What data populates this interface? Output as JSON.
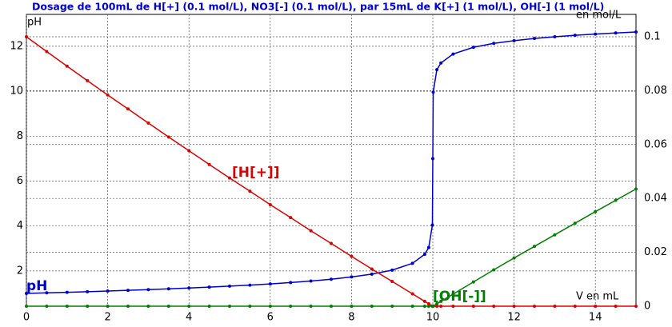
{
  "chart_data": {
    "type": "line",
    "title": "Dosage de 100mL de H[+] (0.1 mol/L), NO3[-] (0.1 mol/L),  par 15mL  de K[+] (1 mol/L), OH[-] (1 mol/L)",
    "y_label": "pH",
    "y2_label": "en mol/L",
    "x_label": "V en mL",
    "x": [
      0,
      0.5,
      1,
      1.5,
      2,
      2.5,
      3,
      3.5,
      4,
      4.5,
      5,
      5.5,
      6,
      6.5,
      7,
      7.5,
      8,
      8.5,
      9,
      9.5,
      9.8,
      9.9,
      9.99,
      10,
      10.01,
      10.1,
      10.2,
      10.5,
      11,
      11.5,
      12,
      12.5,
      13,
      13.5,
      14,
      14.5,
      15
    ],
    "series": [
      {
        "name": "pH",
        "color": "#0000cc",
        "axis": "y",
        "values": [
          1,
          1.024,
          1.05,
          1.077,
          1.106,
          1.136,
          1.168,
          1.202,
          1.239,
          1.279,
          1.322,
          1.37,
          1.423,
          1.483,
          1.552,
          1.633,
          1.732,
          1.859,
          2.037,
          2.34,
          2.74,
          3.041,
          4.041,
          7,
          9.959,
          10.958,
          11.259,
          11.656,
          11.955,
          12.129,
          12.252,
          12.347,
          12.424,
          12.489,
          12.545,
          12.594,
          12.638
        ]
      },
      {
        "name": "[H[+]]",
        "color": "#dd0000",
        "axis": "y2",
        "values": [
          0.1,
          0.0945,
          0.0891,
          0.0837,
          0.0784,
          0.0732,
          0.068,
          0.0628,
          0.0577,
          0.0526,
          0.0476,
          0.0427,
          0.0377,
          0.0329,
          0.028,
          0.0233,
          0.0185,
          0.0138,
          0.0092,
          0.0046,
          0.0018,
          0.0009,
          0.0001,
          0,
          0,
          0,
          0,
          0,
          0,
          0,
          0,
          0,
          0,
          0,
          0,
          0,
          0
        ]
      },
      {
        "name": "[OH[-]]",
        "color": "#008000",
        "axis": "y2",
        "values": [
          0,
          0,
          0,
          0,
          0,
          0,
          0,
          0,
          0,
          0,
          0,
          0,
          0,
          0,
          0,
          0,
          0,
          0,
          0,
          0,
          0,
          0,
          0,
          0,
          0.0001,
          0.0009,
          0.0018,
          0.0045,
          0.009,
          0.0135,
          0.0179,
          0.0222,
          0.0265,
          0.0308,
          0.0351,
          0.0393,
          0.0435
        ]
      }
    ],
    "xlim": [
      0,
      15
    ],
    "ylim": [
      0.43,
      13.42
    ],
    "y2lim": [
      0,
      0.1083
    ],
    "xticks": [
      0,
      2,
      4,
      6,
      8,
      10,
      12,
      14
    ],
    "yticks": [
      2,
      4,
      6,
      8,
      10,
      12
    ],
    "y2ticks": [
      0,
      0.02,
      0.04,
      0.06,
      0.08,
      0.1
    ],
    "grid": true
  }
}
